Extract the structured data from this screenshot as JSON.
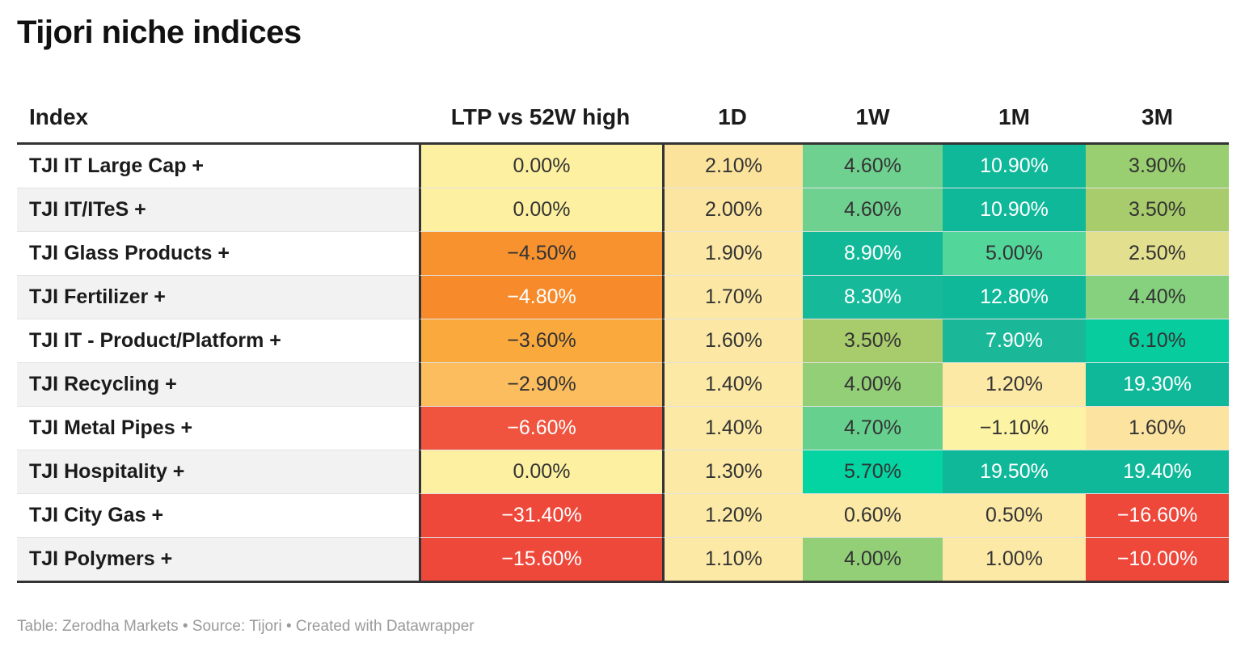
{
  "title": "Tijori niche indices",
  "footer": "Table: Zerodha Markets • Source: Tijori • Created with Datawrapper",
  "chart_data": {
    "type": "table",
    "title": "Tijori niche indices",
    "columns": [
      "Index",
      "LTP vs 52W high",
      "1D",
      "1W",
      "1M",
      "3M"
    ],
    "rows": [
      {
        "name": "TJI IT Large Cap +",
        "values": [
          "0.00%",
          "2.10%",
          "4.60%",
          "10.90%",
          "3.90%"
        ],
        "colors": [
          "#fdf0a0",
          "#fbe39c",
          "#6fd18f",
          "#10b89a",
          "#99cf70"
        ],
        "text_colors": [
          "#333333",
          "#333333",
          "#333333",
          "#ffffff",
          "#333333"
        ]
      },
      {
        "name": "TJI IT/ITeS +",
        "values": [
          "0.00%",
          "2.00%",
          "4.60%",
          "10.90%",
          "3.50%"
        ],
        "colors": [
          "#fdf0a0",
          "#fce5a0",
          "#6fd18f",
          "#10b89a",
          "#a8cc6c"
        ],
        "text_colors": [
          "#333333",
          "#333333",
          "#333333",
          "#ffffff",
          "#333333"
        ]
      },
      {
        "name": "TJI Glass Products +",
        "values": [
          "−4.50%",
          "1.90%",
          "8.90%",
          "5.00%",
          "2.50%"
        ],
        "colors": [
          "#f8922f",
          "#fce7a4",
          "#12b999",
          "#52d69a",
          "#e2df8e"
        ],
        "text_colors": [
          "#333333",
          "#333333",
          "#ffffff",
          "#333333",
          "#333333"
        ]
      },
      {
        "name": "TJI Fertilizer +",
        "values": [
          "−4.80%",
          "1.70%",
          "8.30%",
          "12.80%",
          "4.40%"
        ],
        "colors": [
          "#f78b2c",
          "#fce8a4",
          "#16b99a",
          "#10b89a",
          "#86d17e"
        ],
        "text_colors": [
          "#ffffff",
          "#333333",
          "#ffffff",
          "#ffffff",
          "#333333"
        ]
      },
      {
        "name": "TJI IT - Product/Platform +",
        "values": [
          "−3.60%",
          "1.60%",
          "3.50%",
          "7.90%",
          "6.10%"
        ],
        "colors": [
          "#faa93d",
          "#fce8a4",
          "#a8cc6c",
          "#1ab899",
          "#07cc9e"
        ],
        "text_colors": [
          "#333333",
          "#333333",
          "#333333",
          "#ffffff",
          "#333333"
        ]
      },
      {
        "name": "TJI Recycling +",
        "values": [
          "−2.90%",
          "1.40%",
          "4.00%",
          "1.20%",
          "19.30%"
        ],
        "colors": [
          "#fcbd5e",
          "#fce9a6",
          "#92cf77",
          "#fce9a6",
          "#10b89a"
        ],
        "text_colors": [
          "#333333",
          "#333333",
          "#333333",
          "#333333",
          "#ffffff"
        ]
      },
      {
        "name": "TJI Metal Pipes +",
        "values": [
          "−6.60%",
          "1.40%",
          "4.70%",
          "−1.10%",
          "1.60%"
        ],
        "colors": [
          "#f0533e",
          "#fce9a6",
          "#66d08f",
          "#fdf3a4",
          "#fce3a0"
        ],
        "text_colors": [
          "#ffffff",
          "#333333",
          "#333333",
          "#333333",
          "#333333"
        ]
      },
      {
        "name": "TJI Hospitality +",
        "values": [
          "0.00%",
          "1.30%",
          "5.70%",
          "19.50%",
          "19.40%"
        ],
        "colors": [
          "#fdf0a0",
          "#fce9a6",
          "#04d3a2",
          "#10b89a",
          "#10b89a"
        ],
        "text_colors": [
          "#333333",
          "#333333",
          "#333333",
          "#ffffff",
          "#ffffff"
        ]
      },
      {
        "name": "TJI City Gas +",
        "values": [
          "−31.40%",
          "1.20%",
          "0.60%",
          "0.50%",
          "−16.60%"
        ],
        "colors": [
          "#ee483b",
          "#fce9a6",
          "#fce9a6",
          "#fce9a6",
          "#ee483b"
        ],
        "text_colors": [
          "#ffffff",
          "#333333",
          "#333333",
          "#333333",
          "#ffffff"
        ]
      },
      {
        "name": "TJI Polymers +",
        "values": [
          "−15.60%",
          "1.10%",
          "4.00%",
          "1.00%",
          "−10.00%"
        ],
        "colors": [
          "#ee483b",
          "#fce9a6",
          "#92cf77",
          "#fce9a6",
          "#ee483b"
        ],
        "text_colors": [
          "#ffffff",
          "#333333",
          "#333333",
          "#333333",
          "#ffffff"
        ]
      }
    ],
    "neutral_row_colors": [
      "#ffffff",
      "#f2f2f2"
    ]
  }
}
